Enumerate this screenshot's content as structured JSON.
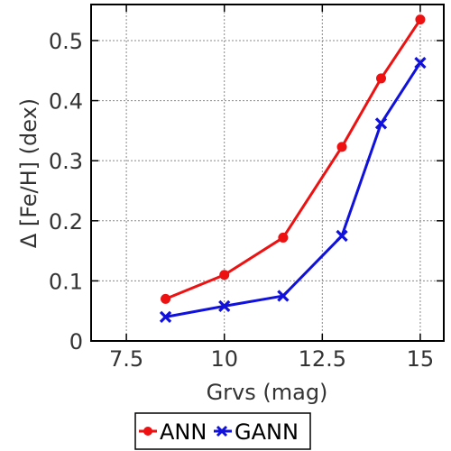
{
  "chart_data": {
    "type": "line",
    "title": "",
    "xlabel": "Grvs (mag)",
    "ylabel": "Δ [Fe/H] (dex)",
    "xlim": [
      6.6,
      15.6
    ],
    "ylim": [
      0,
      0.56
    ],
    "xticks": [
      7.5,
      10,
      12.5,
      15
    ],
    "xtick_labels": [
      "7.5",
      "10",
      "12.5",
      "15"
    ],
    "yticks": [
      0,
      0.1,
      0.2,
      0.3,
      0.4,
      0.5
    ],
    "ytick_labels": [
      "0",
      "0.1",
      "0.2",
      "0.3",
      "0.4",
      "0.5"
    ],
    "grid": true,
    "legend_position": "bottom-center, outside plot",
    "x": [
      8.5,
      10,
      11.5,
      13,
      14,
      15
    ],
    "series": [
      {
        "name": "ANN",
        "color": "#ee1111",
        "marker": "circle",
        "values": [
          0.07,
          0.11,
          0.172,
          0.323,
          0.437,
          0.535
        ]
      },
      {
        "name": "GANN",
        "color": "#1111dd",
        "marker": "x",
        "values": [
          0.04,
          0.058,
          0.075,
          0.175,
          0.362,
          0.463
        ]
      }
    ]
  }
}
